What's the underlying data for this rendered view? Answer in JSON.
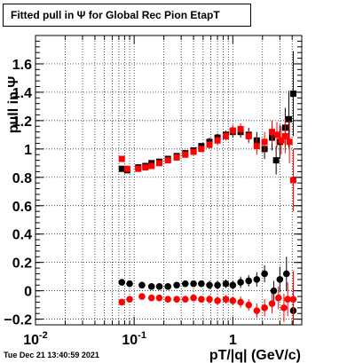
{
  "title": "Fitted pull in  Ψ  for Global Rec Pion EtapT",
  "timestamp": "Tue Dec 21 13:40:59 2021",
  "chart_data": {
    "type": "scatter",
    "x_scale": "log",
    "xlim": [
      0.01,
      5
    ],
    "ylim": [
      -0.24,
      1.8
    ],
    "grid": true,
    "xlabel": "pT/|q| (GeV/c)",
    "ylabel": "pull in Ψ",
    "x_ticks": [
      {
        "v": 0.01,
        "label": "10",
        "exp": "-2"
      },
      {
        "v": 0.1,
        "label": "10",
        "exp": "-1"
      },
      {
        "v": 1,
        "label": "1",
        "exp": ""
      }
    ],
    "y_ticks": [
      {
        "v": -0.2,
        "label": "−0.2"
      },
      {
        "v": 0,
        "label": "0"
      },
      {
        "v": 0.2,
        "label": "0.2"
      },
      {
        "v": 0.4,
        "label": "0.4"
      },
      {
        "v": 0.6,
        "label": "0.6"
      },
      {
        "v": 0.8,
        "label": "0.8"
      },
      {
        "v": 1,
        "label": "1"
      },
      {
        "v": 1.2,
        "label": "1.2"
      },
      {
        "v": 1.4,
        "label": "1.4"
      },
      {
        "v": 1.6,
        "label": "1.6"
      }
    ],
    "series": [
      {
        "color": "#000000",
        "marker": "square",
        "points": [
          [
            0.075,
            0.86,
            0.02
          ],
          [
            0.085,
            0.85,
            0.02
          ],
          [
            0.11,
            0.87,
            0.02
          ],
          [
            0.13,
            0.88,
            0.02
          ],
          [
            0.15,
            0.9,
            0.02
          ],
          [
            0.18,
            0.91,
            0.02
          ],
          [
            0.22,
            0.93,
            0.02
          ],
          [
            0.27,
            0.95,
            0.02
          ],
          [
            0.33,
            0.97,
            0.02
          ],
          [
            0.4,
            0.99,
            0.02
          ],
          [
            0.48,
            1.02,
            0.02
          ],
          [
            0.58,
            1.05,
            0.03
          ],
          [
            0.7,
            1.08,
            0.03
          ],
          [
            0.85,
            1.1,
            0.03
          ],
          [
            1.0,
            1.12,
            0.04
          ],
          [
            1.2,
            1.12,
            0.04
          ],
          [
            1.45,
            1.1,
            0.05
          ],
          [
            1.75,
            1.06,
            0.06
          ],
          [
            2.1,
            1.0,
            0.07
          ],
          [
            2.5,
            1.08,
            0.09
          ],
          [
            2.75,
            0.92,
            0.1
          ],
          [
            3.0,
            1.05,
            0.12
          ],
          [
            3.4,
            1.15,
            0.14
          ],
          [
            3.7,
            1.21,
            0.2
          ],
          [
            4.1,
            1.39,
            0.3
          ]
        ]
      },
      {
        "color": "#000000",
        "marker": "circle",
        "points": [
          [
            0.075,
            0.06,
            0.02
          ],
          [
            0.09,
            0.05,
            0.02
          ],
          [
            0.12,
            0.04,
            0.02
          ],
          [
            0.15,
            0.03,
            0.02
          ],
          [
            0.18,
            0.03,
            0.02
          ],
          [
            0.22,
            0.03,
            0.02
          ],
          [
            0.27,
            0.04,
            0.02
          ],
          [
            0.33,
            0.05,
            0.02
          ],
          [
            0.4,
            0.05,
            0.02
          ],
          [
            0.48,
            0.05,
            0.02
          ],
          [
            0.58,
            0.04,
            0.03
          ],
          [
            0.7,
            0.04,
            0.03
          ],
          [
            0.85,
            0.05,
            0.03
          ],
          [
            1.0,
            0.04,
            0.03
          ],
          [
            1.2,
            0.06,
            0.04
          ],
          [
            1.45,
            0.07,
            0.04
          ],
          [
            1.75,
            0.08,
            0.05
          ],
          [
            2.1,
            0.12,
            0.06
          ],
          [
            2.6,
            0.0,
            0.07
          ],
          [
            3.0,
            0.08,
            0.09
          ],
          [
            3.5,
            0.12,
            0.12
          ],
          [
            4.1,
            -0.14,
            0.2
          ]
        ]
      },
      {
        "color": "#ff0000",
        "marker": "square",
        "points": [
          [
            0.075,
            0.93,
            0.02
          ],
          [
            0.085,
            0.86,
            0.02
          ],
          [
            0.11,
            0.86,
            0.02
          ],
          [
            0.13,
            0.87,
            0.02
          ],
          [
            0.15,
            0.88,
            0.02
          ],
          [
            0.18,
            0.9,
            0.02
          ],
          [
            0.22,
            0.92,
            0.02
          ],
          [
            0.27,
            0.94,
            0.02
          ],
          [
            0.33,
            0.96,
            0.02
          ],
          [
            0.4,
            0.98,
            0.02
          ],
          [
            0.48,
            1.0,
            0.02
          ],
          [
            0.58,
            1.03,
            0.03
          ],
          [
            0.7,
            1.06,
            0.03
          ],
          [
            0.85,
            1.09,
            0.03
          ],
          [
            1.0,
            1.13,
            0.04
          ],
          [
            1.2,
            1.14,
            0.04
          ],
          [
            1.45,
            1.09,
            0.05
          ],
          [
            1.75,
            1.02,
            0.06
          ],
          [
            2.1,
            1.05,
            0.07
          ],
          [
            2.5,
            1.12,
            0.08
          ],
          [
            2.8,
            1.1,
            0.09
          ],
          [
            3.1,
            1.06,
            0.1
          ],
          [
            3.4,
            1.09,
            0.12
          ],
          [
            3.75,
            1.05,
            0.15
          ],
          [
            4.1,
            0.78,
            0.22
          ]
        ]
      },
      {
        "color": "#ff0000",
        "marker": "circle",
        "points": [
          [
            0.075,
            -0.08,
            0.02
          ],
          [
            0.09,
            -0.06,
            0.02
          ],
          [
            0.12,
            -0.04,
            0.02
          ],
          [
            0.15,
            -0.05,
            0.02
          ],
          [
            0.18,
            -0.05,
            0.02
          ],
          [
            0.22,
            -0.06,
            0.02
          ],
          [
            0.27,
            -0.06,
            0.02
          ],
          [
            0.33,
            -0.06,
            0.02
          ],
          [
            0.4,
            -0.05,
            0.02
          ],
          [
            0.48,
            -0.06,
            0.02
          ],
          [
            0.58,
            -0.06,
            0.03
          ],
          [
            0.7,
            -0.07,
            0.03
          ],
          [
            0.85,
            -0.06,
            0.03
          ],
          [
            1.0,
            -0.07,
            0.03
          ],
          [
            1.2,
            -0.08,
            0.04
          ],
          [
            1.45,
            -0.1,
            0.04
          ],
          [
            1.75,
            -0.14,
            0.05
          ],
          [
            2.1,
            -0.12,
            0.06
          ],
          [
            2.5,
            -0.09,
            0.07
          ],
          [
            2.9,
            -0.05,
            0.08
          ],
          [
            3.3,
            -0.12,
            0.1
          ],
          [
            3.6,
            -0.06,
            0.12
          ],
          [
            4.1,
            -0.06,
            0.2
          ]
        ]
      }
    ]
  }
}
